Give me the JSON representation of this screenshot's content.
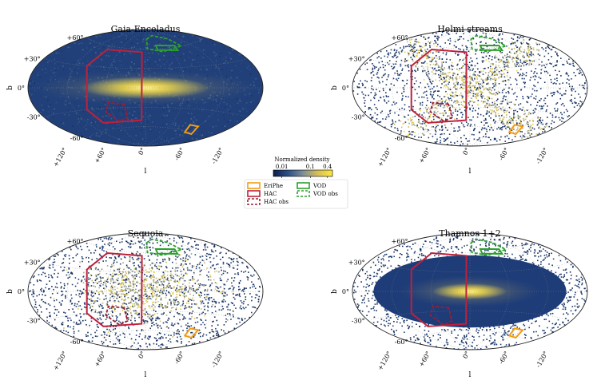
{
  "chart_data": [
    {
      "type": "heatmap",
      "projection": "aitoff",
      "title": "Gaia-Enceladus",
      "xlabel": "l",
      "ylabel": "b",
      "xtick_labels": [
        "+120°",
        "+60°",
        "0°",
        "-60°",
        "-120°"
      ],
      "ytick_labels": [
        "+60°",
        "+30°",
        "0°",
        "-30°",
        "-60°"
      ],
      "density_pattern": "smooth full-sky, bright disk band",
      "regions": [
        "HAC",
        "HAC obs",
        "VOD",
        "VOD obs",
        "EriPhe"
      ]
    },
    {
      "type": "heatmap",
      "projection": "aitoff",
      "title": "Helmi streams",
      "xlabel": "l",
      "ylabel": "b",
      "xtick_labels": [
        "+120°",
        "+60°",
        "0°",
        "-60°",
        "-120°"
      ],
      "ytick_labels": [
        "+60°",
        "+30°",
        "0°",
        "-30°",
        "-60°"
      ],
      "density_pattern": "sparse speckle, X-shaped overdensity",
      "regions": [
        "HAC",
        "HAC obs",
        "VOD",
        "VOD obs",
        "EriPhe"
      ]
    },
    {
      "type": "heatmap",
      "projection": "aitoff",
      "title": "Sequoia",
      "xlabel": "l",
      "ylabel": "b",
      "xtick_labels": [
        "+120°",
        "+60°",
        "0°",
        "-60°",
        "-120°"
      ],
      "ytick_labels": [
        "+60°",
        "+30°",
        "0°",
        "-30°",
        "-60°"
      ],
      "density_pattern": "sparse speckle, patchy central overdensity",
      "regions": [
        "HAC",
        "HAC obs",
        "VOD",
        "VOD obs",
        "EriPhe"
      ]
    },
    {
      "type": "heatmap",
      "projection": "aitoff",
      "title": "Thamnos 1+2",
      "xlabel": "l",
      "ylabel": "b",
      "xtick_labels": [
        "+120°",
        "+60°",
        "0°",
        "-60°",
        "-120°"
      ],
      "ytick_labels": [
        "+60°",
        "+30°",
        "0°",
        "-30°",
        "-60°"
      ],
      "density_pattern": "sparse outskirts, compact central bulge",
      "regions": [
        "HAC",
        "HAC obs",
        "VOD",
        "VOD obs",
        "EriPhe"
      ]
    }
  ],
  "colorbar": {
    "label": "Normalized density",
    "tick_labels": [
      "0.01",
      "0.1",
      "0.4"
    ],
    "ticks": [
      0.01,
      0.1,
      0.4
    ],
    "range": [
      0.005,
      0.6
    ],
    "scale": "log",
    "colors": [
      "#0b1d4b",
      "#2c4f86",
      "#7d8d98",
      "#d6bf58",
      "#fbe93a"
    ]
  },
  "legend": {
    "items": [
      {
        "key": "EriPhe",
        "label": "EriPhe",
        "color": "#f39c12",
        "style": "solid"
      },
      {
        "key": "VOD",
        "label": "VOD",
        "color": "#2ca02c",
        "style": "solid"
      },
      {
        "key": "HAC",
        "label": "HAC",
        "color": "#c0203a",
        "style": "solid"
      },
      {
        "key": "VODobs",
        "label": "VOD obs",
        "color": "#2ca02c",
        "style": "dashed"
      },
      {
        "key": "HACobs",
        "label": "HAC obs",
        "color": "#a01c30",
        "style": "dashed"
      }
    ]
  }
}
